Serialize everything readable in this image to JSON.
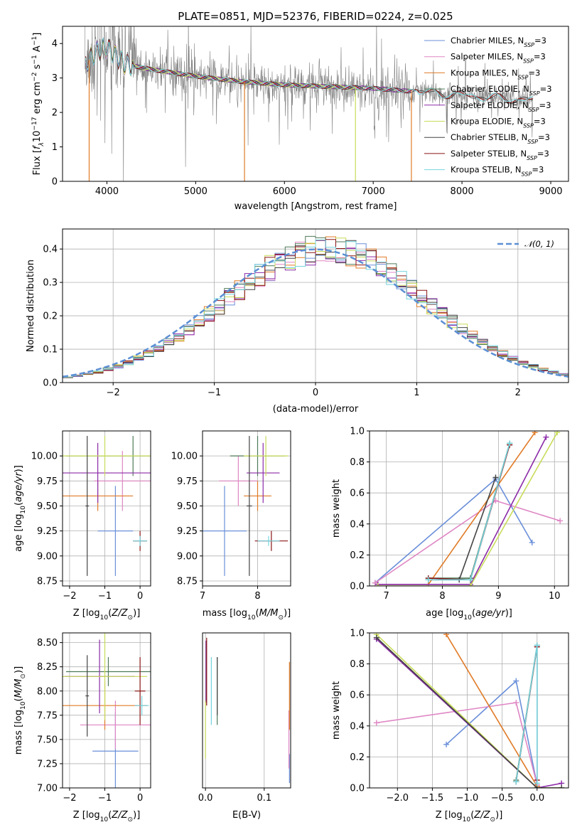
{
  "colors": {
    "data": "#808080",
    "ssp": [
      "#6a8fd9",
      "#df86c4",
      "#e07b27",
      "#4d7a57",
      "#8b2aa8",
      "#c8dc5a",
      "#444444",
      "#8b1515",
      "#74d4de"
    ],
    "normal": "#5b8fd4",
    "grid": "#b0b0b0"
  },
  "models": [
    {
      "label": "Chabrier MILES, N",
      "sub": "SSP",
      "suffix": "=3"
    },
    {
      "label": "Salpeter MILES, N",
      "sub": "SSP",
      "suffix": "=3"
    },
    {
      "label": "Kroupa MILES, N",
      "sub": "SSP",
      "suffix": "=3"
    },
    {
      "label": "Chabrier ELODIE, N",
      "sub": "SSP",
      "suffix": "=3"
    },
    {
      "label": "Salpeter ELODIE, N",
      "sub": "SSP",
      "suffix": "=3"
    },
    {
      "label": "Kroupa ELODIE, N",
      "sub": "SSP",
      "suffix": "=3"
    },
    {
      "label": "Chabrier STELIB, N",
      "sub": "SSP",
      "suffix": "=3"
    },
    {
      "label": "Salpeter STELIB, N",
      "sub": "SSP",
      "suffix": "=3"
    },
    {
      "label": "Kroupa STELIB, N",
      "sub": "SSP",
      "suffix": "=3"
    }
  ],
  "chart_data": [
    {
      "id": "spectrum",
      "type": "line",
      "title": "PLATE=0851, MJD=52376, FIBERID=0224, z=0.025",
      "xlabel": "wavelength [Angstrom, rest frame]",
      "ylabel": "Flux [fλ10⁻¹⁷ erg cm⁻² s⁻¹ A⁻¹]",
      "xlim": [
        3500,
        9200
      ],
      "ylim": [
        0,
        4.5
      ],
      "xticks": [
        4000,
        5000,
        6000,
        7000,
        8000,
        9000
      ],
      "yticks": [
        0,
        1,
        2,
        3,
        4
      ],
      "continuum": {
        "x": [
          3750,
          3900,
          4000,
          4200,
          4500,
          5000,
          5500,
          6000,
          6500,
          7000,
          7500,
          8000,
          8500,
          8800
        ],
        "y": [
          3.4,
          3.8,
          3.9,
          3.4,
          3.25,
          3.05,
          2.9,
          2.8,
          2.75,
          2.7,
          2.6,
          2.5,
          2.4,
          2.35
        ]
      },
      "data_range": [
        3750,
        8800
      ],
      "model_breaks": [
        {
          "model": 2,
          "x": [
            3750,
            7430
          ]
        },
        {
          "model": 5,
          "x": [
            3750,
            6800
          ]
        },
        {
          "model": 8,
          "x": [
            3750,
            8800
          ]
        }
      ]
    },
    {
      "id": "residuals",
      "type": "line",
      "xlabel": "(data-model)/error",
      "ylabel": "Normed distribution",
      "xlim": [
        -2.5,
        2.5
      ],
      "ylim": [
        0,
        0.46
      ],
      "xticks": [
        -2,
        -1,
        0,
        1,
        2
      ],
      "yticks": [
        0.0,
        0.1,
        0.2,
        0.3,
        0.4
      ],
      "legend": "𝒩(0, 1)",
      "legend_loc": "upper right",
      "bin_width": 0.1
    },
    {
      "id": "age-vs-z",
      "type": "scatter",
      "xlabel": "Z [log10(Z/Z⊙)]",
      "ylabel": "age  [log10(age/yr)]",
      "xlim": [
        -2.2,
        0.3
      ],
      "ylim": [
        8.7,
        10.25
      ],
      "xticks": [
        -2,
        -1,
        0
      ],
      "yticks": [
        8.75,
        9.0,
        9.25,
        9.5,
        9.75,
        10.0
      ],
      "points": [
        {
          "m": 0,
          "x": -0.7,
          "y": 9.25,
          "xe": 0.5,
          "ye": 0.45
        },
        {
          "m": 1,
          "x": -0.5,
          "y": 9.75,
          "xe": 0.8,
          "ye": 0.3
        },
        {
          "m": 2,
          "x": -1.2,
          "y": 9.6,
          "xe": 1.0,
          "ye": 0.15
        },
        {
          "m": 3,
          "x": -0.2,
          "y": 10.0,
          "xe": 1.9,
          "ye": 0.2
        },
        {
          "m": 4,
          "x": -1.2,
          "y": 9.83,
          "xe": 1.8,
          "ye": 0.3
        },
        {
          "m": 5,
          "x": -1.0,
          "y": 10.0,
          "xe": 1.6,
          "ye": 0.2
        },
        {
          "m": 6,
          "x": -1.5,
          "y": 9.5,
          "xe": 0.05,
          "ye": 0.7
        },
        {
          "m": 7,
          "x": 0.0,
          "y": 9.15,
          "xe": 0.2,
          "ye": 0.1
        },
        {
          "m": 8,
          "x": 0.0,
          "y": 9.15,
          "xe": 0.2,
          "ye": 0.05
        }
      ]
    },
    {
      "id": "age-vs-mass",
      "type": "scatter",
      "xlabel": "mass [log10(M/M⊙)]",
      "xlim": [
        7.0,
        8.6
      ],
      "ylim": [
        8.7,
        10.25
      ],
      "xticks": [
        7,
        8
      ],
      "yticks": [
        8.75,
        9.0,
        9.25,
        9.5,
        9.75,
        10.0
      ],
      "points": [
        {
          "m": 0,
          "x": 7.4,
          "y": 9.25,
          "xe": 0.4,
          "ye": 0.45
        },
        {
          "m": 1,
          "x": 7.65,
          "y": 9.75,
          "xe": 0.35,
          "ye": 0.25
        },
        {
          "m": 2,
          "x": 8.0,
          "y": 9.6,
          "xe": 0.25,
          "ye": 0.15
        },
        {
          "m": 3,
          "x": 8.0,
          "y": 10.0,
          "xe": 0.5,
          "ye": 0.2
        },
        {
          "m": 4,
          "x": 8.1,
          "y": 9.83,
          "xe": 0.3,
          "ye": 0.3
        },
        {
          "m": 5,
          "x": 8.15,
          "y": 10.0,
          "xe": 0.4,
          "ye": 0.2
        },
        {
          "m": 6,
          "x": 7.85,
          "y": 9.5,
          "xe": 0.05,
          "ye": 0.7
        },
        {
          "m": 7,
          "x": 8.25,
          "y": 9.15,
          "xe": 0.3,
          "ye": 0.1
        },
        {
          "m": 8,
          "x": 8.2,
          "y": 9.15,
          "xe": 0.2,
          "ye": 0.05
        }
      ]
    },
    {
      "id": "weight-vs-age",
      "type": "line",
      "xlabel": "age  [log10(age/yr)]",
      "ylabel": "mass weight",
      "xlim": [
        6.7,
        10.25
      ],
      "ylim": [
        0,
        1.0
      ],
      "xticks": [
        7,
        8,
        9,
        10
      ],
      "yticks": [
        0.0,
        0.2,
        0.4,
        0.6,
        0.8,
        1.0
      ],
      "series": [
        {
          "m": 0,
          "x": [
            6.8,
            8.95,
            9.6
          ],
          "y": [
            0.02,
            0.69,
            0.28
          ]
        },
        {
          "m": 1,
          "x": [
            6.8,
            8.95,
            10.1
          ],
          "y": [
            0.02,
            0.55,
            0.42
          ]
        },
        {
          "m": 2,
          "x": [
            6.85,
            7.75,
            9.65
          ],
          "y": [
            0.01,
            0.01,
            0.99
          ]
        },
        {
          "m": 3,
          "x": [
            7.75,
            8.5,
            9.2
          ],
          "y": [
            0.05,
            0.05,
            0.92
          ]
        },
        {
          "m": 4,
          "x": [
            6.85,
            8.5,
            9.85
          ],
          "y": [
            0.01,
            0.01,
            0.96
          ]
        },
        {
          "m": 5,
          "x": [
            6.85,
            8.5,
            10.05
          ],
          "y": [
            0.0,
            0.0,
            0.99
          ]
        },
        {
          "m": 6,
          "x": [
            7.75,
            8.3,
            8.95
          ],
          "y": [
            0.04,
            0.04,
            0.7
          ]
        },
        {
          "m": 7,
          "x": [
            7.75,
            8.5,
            9.2
          ],
          "y": [
            0.05,
            0.04,
            0.91
          ]
        },
        {
          "m": 8,
          "x": [
            7.75,
            8.5,
            9.2
          ],
          "y": [
            0.04,
            0.04,
            0.92
          ]
        }
      ]
    },
    {
      "id": "mass-vs-z",
      "type": "scatter",
      "xlabel": "Z [log10(Z/Z⊙)]",
      "ylabel": "mass [log10(M/M⊙)]",
      "xlim": [
        -2.2,
        0.3
      ],
      "ylim": [
        7.0,
        8.6
      ],
      "xticks": [
        -2,
        -1,
        0
      ],
      "yticks": [
        7.0,
        7.25,
        7.5,
        7.75,
        8.0,
        8.25,
        8.5
      ],
      "points": [
        {
          "m": 0,
          "x": -0.7,
          "y": 7.38,
          "xe": 0.65,
          "ye": 0.4
        },
        {
          "m": 1,
          "x": -0.7,
          "y": 7.65,
          "xe": 1.0,
          "ye": 0.25
        },
        {
          "m": 2,
          "x": -1.0,
          "y": 7.85,
          "xe": 1.2,
          "ye": 0.25
        },
        {
          "m": 3,
          "x": -0.9,
          "y": 8.2,
          "xe": 1.2,
          "ye": 0.15
        },
        {
          "m": 4,
          "x": -1.15,
          "y": 8.15,
          "xe": 1.0,
          "ye": 0.38
        },
        {
          "m": 5,
          "x": -1.0,
          "y": 8.15,
          "xe": 1.2,
          "ye": 0.45
        },
        {
          "m": 6,
          "x": -1.5,
          "y": 7.95,
          "xe": 0.05,
          "ye": 0.42
        },
        {
          "m": 7,
          "x": 0.0,
          "y": 8.0,
          "xe": 0.15,
          "ye": 0.35
        },
        {
          "m": 8,
          "x": 0.05,
          "y": 7.85,
          "xe": 0.2,
          "ye": 0.1
        }
      ]
    },
    {
      "id": "mass-vs-ebv",
      "type": "scatter",
      "xlabel": "E(B-V)",
      "xlim": [
        -0.005,
        0.145
      ],
      "ylim": [
        7.0,
        8.6
      ],
      "xticks": [
        0.0,
        0.1
      ],
      "points": [
        {
          "m": 0,
          "x": 0.143,
          "y": 7.2,
          "xe": 0.0,
          "ye": 0.15
        },
        {
          "m": 1,
          "x": 0.142,
          "y": 7.5,
          "xe": 0.0,
          "ye": 0.3
        },
        {
          "m": 2,
          "x": 0.143,
          "y": 7.95,
          "xe": 0.0,
          "ye": 0.35
        },
        {
          "m": 3,
          "x": 0.02,
          "y": 8.0,
          "xe": 0.0,
          "ye": 0.35
        },
        {
          "m": 4,
          "x": 0.001,
          "y": 8.2,
          "xe": 0.0,
          "ye": 0.32
        },
        {
          "m": 5,
          "x": 0.0,
          "y": 7.6,
          "xe": 0.0,
          "ye": 0.3
        },
        {
          "m": 6,
          "x": 0.02,
          "y": 8.05,
          "xe": 0.0,
          "ye": 0.3
        },
        {
          "m": 7,
          "x": 0.002,
          "y": 8.2,
          "xe": 0.0,
          "ye": 0.35
        },
        {
          "m": 8,
          "x": 0.01,
          "y": 8.0,
          "xe": 0.0,
          "ye": 0.35
        }
      ]
    },
    {
      "id": "weight-vs-z",
      "type": "line",
      "xlabel": "Z [log10(Z/Z⊙)]",
      "ylabel": "mass weight",
      "xlim": [
        -2.4,
        0.45
      ],
      "ylim": [
        0,
        1.0
      ],
      "xticks": [
        -2.0,
        -1.5,
        -1.0,
        -0.5,
        0.0
      ],
      "yticks": [
        0.0,
        0.2,
        0.4,
        0.6,
        0.8,
        1.0
      ],
      "series": [
        {
          "m": 0,
          "x": [
            -1.3,
            -0.3,
            0.0
          ],
          "y": [
            0.28,
            0.69,
            0.02
          ]
        },
        {
          "m": 1,
          "x": [
            -2.3,
            -0.3,
            0.0
          ],
          "y": [
            0.42,
            0.55,
            0.02
          ]
        },
        {
          "m": 2,
          "x": [
            -1.3,
            0.0,
            0.0
          ],
          "y": [
            0.99,
            0.01,
            0.01
          ]
        },
        {
          "m": 3,
          "x": [
            -0.3,
            0.0,
            -0.3
          ],
          "y": [
            0.05,
            0.92,
            0.04
          ]
        },
        {
          "m": 4,
          "x": [
            -2.3,
            0.0,
            0.35
          ],
          "y": [
            0.96,
            0.0,
            0.03
          ]
        },
        {
          "m": 5,
          "x": [
            -2.3,
            0.0,
            0.35
          ],
          "y": [
            0.99,
            0.0,
            0.0
          ]
        },
        {
          "m": 6,
          "x": [
            -2.3,
            0.0,
            0.35
          ],
          "y": [
            0.97,
            0.0,
            0.0
          ]
        },
        {
          "m": 7,
          "x": [
            -0.3,
            0.0,
            0.0
          ],
          "y": [
            0.04,
            0.91,
            0.05
          ]
        },
        {
          "m": 8,
          "x": [
            -0.3,
            0.0,
            0.0
          ],
          "y": [
            0.04,
            0.92,
            0.03
          ]
        }
      ]
    }
  ]
}
